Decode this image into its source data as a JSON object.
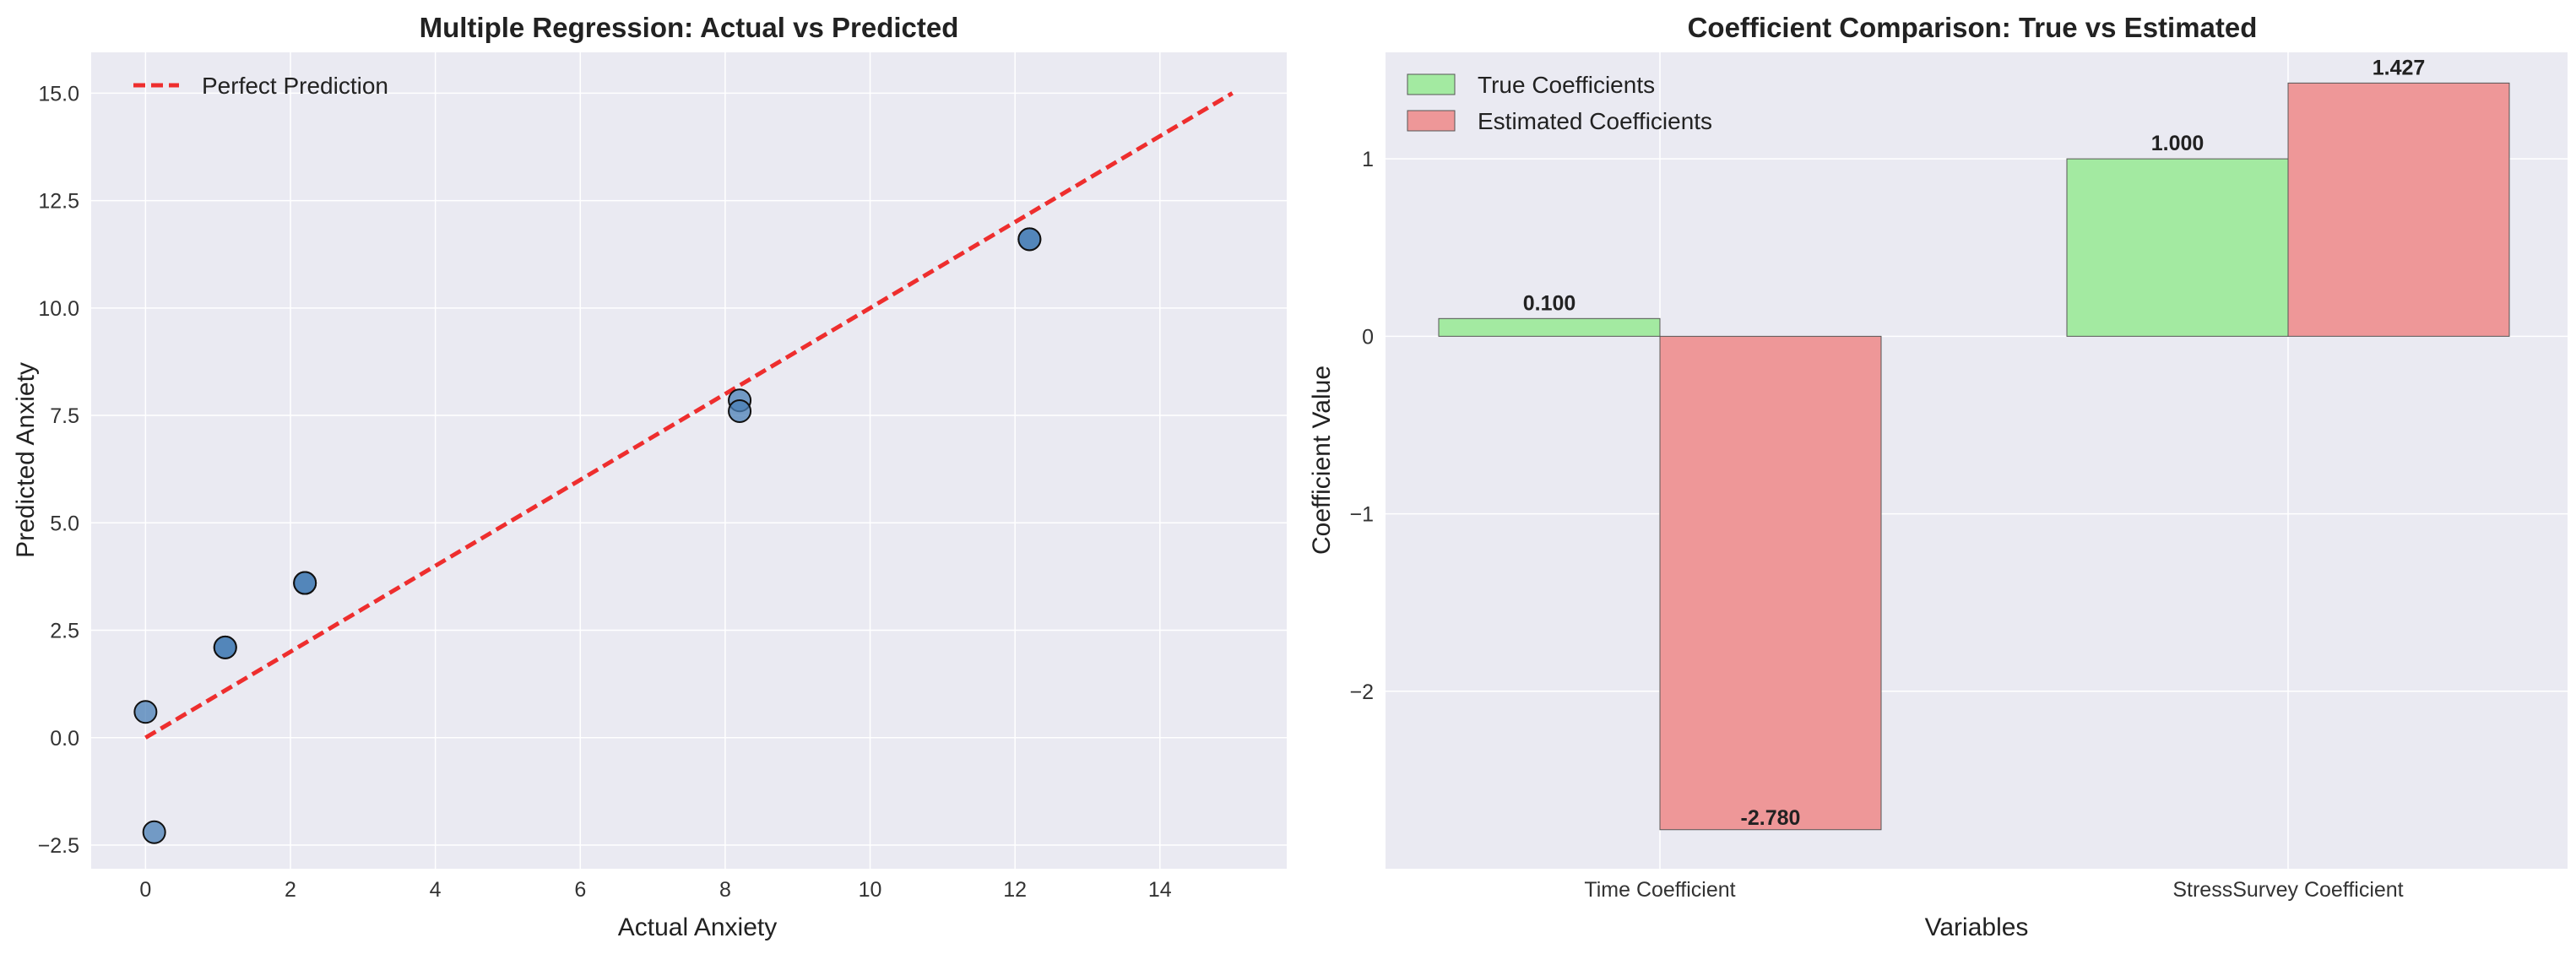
{
  "chart_data": [
    {
      "type": "scatter",
      "title": "Multiple Regression: Actual vs Predicted",
      "xlabel": "Actual Anxiety",
      "ylabel": "Predicted Anxiety",
      "xlim": [
        -0.75,
        15.75
      ],
      "ylim": [
        -3.05,
        15.95
      ],
      "xticks": [
        0,
        2,
        4,
        6,
        8,
        10,
        12,
        14
      ],
      "yticks": [
        -2.5,
        0.0,
        2.5,
        5.0,
        7.5,
        10.0,
        12.5,
        15.0
      ],
      "xtick_labels": [
        "0",
        "2",
        "4",
        "6",
        "8",
        "10",
        "12",
        "14"
      ],
      "ytick_labels": [
        "−2.5",
        "0.0",
        "2.5",
        "5.0",
        "7.5",
        "10.0",
        "12.5",
        "15.0"
      ],
      "grid": true,
      "legend_position": "top-left",
      "series": [
        {
          "kind": "scatter",
          "color": "#4a7fb5",
          "points": [
            {
              "x": 0.0,
              "y": 0.6
            },
            {
              "x": 0.12,
              "y": -2.2
            },
            {
              "x": 1.1,
              "y": 2.1
            },
            {
              "x": 1.1,
              "y": 2.1
            },
            {
              "x": 2.2,
              "y": 3.6
            },
            {
              "x": 2.2,
              "y": 3.6
            },
            {
              "x": 8.2,
              "y": 7.85
            },
            {
              "x": 8.2,
              "y": 7.6
            },
            {
              "x": 12.2,
              "y": 11.6
            },
            {
              "x": 12.2,
              "y": 11.6
            }
          ]
        },
        {
          "kind": "line",
          "name": "Perfect Prediction",
          "color": "#ee2e2e",
          "dashed": true,
          "points": [
            {
              "x": 0,
              "y": 0
            },
            {
              "x": 15,
              "y": 15
            }
          ]
        }
      ]
    },
    {
      "type": "bar",
      "title": "Coefficient Comparison: True vs Estimated",
      "xlabel": "Variables",
      "ylabel": "Coefficient Value",
      "categories": [
        "Time Coefficient",
        "StressSurvey Coefficient"
      ],
      "ylim": [
        -3.0,
        1.6
      ],
      "yticks": [
        -2,
        -1,
        0,
        1
      ],
      "ytick_labels": [
        "−2",
        "−1",
        "0",
        "1"
      ],
      "grid": true,
      "legend_position": "top-left",
      "series": [
        {
          "name": "True Coefficients",
          "color": "#a3eaa1",
          "values": [
            0.1,
            1.0
          ],
          "labels": [
            "0.100",
            "1.000"
          ]
        },
        {
          "name": "Estimated Coefficients",
          "color": "#ee9798",
          "values": [
            -2.78,
            1.427
          ],
          "labels": [
            "-2.780",
            "1.427"
          ]
        }
      ]
    }
  ]
}
